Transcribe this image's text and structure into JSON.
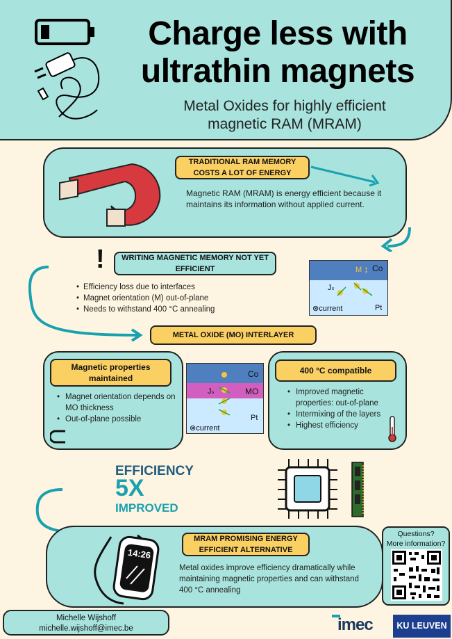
{
  "header": {
    "title_line1": "Charge less with",
    "title_line2": "ultrathin magnets",
    "subtitle_line1": "Metal Oxides for highly efficient",
    "subtitle_line2": "magnetic RAM (MRAM)"
  },
  "section1": {
    "pill_line1": "TRADITIONAL RAM MEMORY",
    "pill_line2": "COSTS A LOT OF ENERGY",
    "text_line1": "Magnetic RAM (MRAM) is energy efficient because it",
    "text_line2": "maintains its information without applied current."
  },
  "section2": {
    "exclamation": "!",
    "pill_line1": "WRITING MAGNETIC MEMORY NOT YET",
    "pill_line2": "EFFICIENT",
    "items": [
      "Efficiency loss due to interfaces",
      "Magnet orientation (M) out-of-plane",
      "Needs to withstand 400 °C annealing"
    ],
    "diagram": {
      "m": "M",
      "co": "Co",
      "js": "Jₛ",
      "current": "⊗current",
      "pt": "Pt"
    }
  },
  "section3": {
    "pill": "METAL OXIDE (MO) INTERLAYER",
    "left_pill_line1": "Magnetic properties",
    "left_pill_line2": "maintained",
    "left_items": [
      "Magnet orientation depends on MO thickness",
      "Out-of-plane possible"
    ],
    "right_pill": "400 °C compatible",
    "right_items": [
      "Improved magnetic properties: out-of-plane",
      "Intermixing of the layers",
      "Highest efficiency"
    ],
    "diagram": {
      "co": "Co",
      "mo": "MO",
      "js": "Jₛ",
      "current": "⊗current",
      "pt": "Pt"
    }
  },
  "efficiency": {
    "line1": "EFFICIENCY",
    "line2": "5X",
    "line3": "IMPROVED"
  },
  "section4": {
    "pill_line1": "MRAM PROMISING ENERGY",
    "pill_line2": "EFFICIENT ALTERNATIVE",
    "text_line1": "Metal oxides improve efficiency dramatically while",
    "text_line2": "maintaining magnetic properties and can withstand",
    "text_line3": "400 °C annealing",
    "watch_time": "14:26"
  },
  "qr": {
    "line1": "Questions?",
    "line2": "More information?"
  },
  "footer": {
    "name": "Michelle Wijshoff",
    "email": "michelle.wijshoff@imec.be",
    "logo_imec": "imec",
    "logo_ku": "KU LEUVEN"
  },
  "colors": {
    "teal": "#a8e3dd",
    "yellow": "#fbd063",
    "cream": "#fdf5e2",
    "accent": "#19a1b0",
    "navy": "#1f5c7f"
  }
}
